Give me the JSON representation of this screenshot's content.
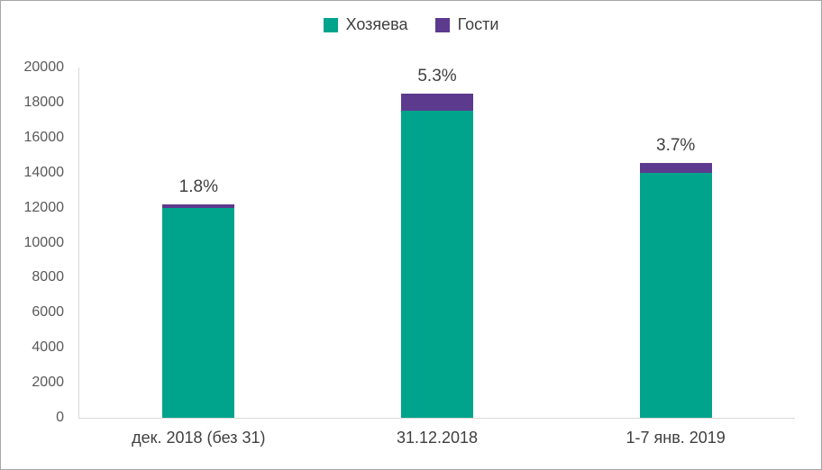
{
  "chart_data": {
    "type": "bar",
    "stacked": true,
    "title": "",
    "categories": [
      "дек. 2018 (без 31)",
      "31.12.2018",
      "1-7 янв. 2019"
    ],
    "series": [
      {
        "key": "hosts",
        "name": "Хозяева",
        "color": "#00A38C",
        "values": [
          11980,
          17520,
          14010
        ]
      },
      {
        "key": "guests",
        "name": "Гости",
        "color": "#5C3A8E",
        "values": [
          220,
          980,
          540
        ]
      }
    ],
    "bar_labels": [
      "1.8%",
      "5.3%",
      "3.7%"
    ],
    "xlabel": "",
    "ylabel": "",
    "ylim": [
      0,
      20000
    ],
    "ytick_step": 2000,
    "legend_position": "top",
    "grid": false,
    "axis_color": "#D9D9D9",
    "tick_label_color": "#595959",
    "text_color": "#404040",
    "frame_border_color": "#A6A6A6"
  }
}
